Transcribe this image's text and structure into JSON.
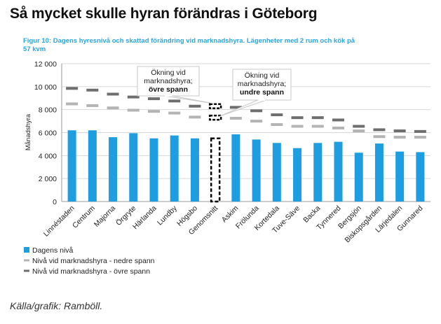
{
  "headline": "Så mycket skulle hyran förändras i Göteborg",
  "source": "Källa/grafik: Ramböll.",
  "colors": {
    "bar": "#1e9ee0",
    "lower": "#b4b4b4",
    "upper": "#6e6e6e",
    "caption": "#2aa6df",
    "dashed": "#000000"
  },
  "chart_data": {
    "type": "bar",
    "caption": "Figur 10: Dagens hyresnivå och skattad förändring vid marknadshyra. Lägenheter med 2 rum och kök på 57 kvm",
    "ylabel": "Månadshyra",
    "xlabel": "",
    "ylim": [
      0,
      12000
    ],
    "yticks": [
      0,
      2000,
      4000,
      6000,
      8000,
      10000,
      12000
    ],
    "ytick_labels": [
      "0",
      "2 000",
      "4 000",
      "6 000",
      "8 000",
      "10 000",
      "12 000"
    ],
    "grid": true,
    "legend_position": "bottom-left",
    "categories": [
      "Linnéstaden",
      "Centrum",
      "Majorna",
      "Örgryte",
      "Härlanda",
      "Lundby",
      "Högsbo",
      "Genomsnitt",
      "Askim",
      "Frölunda",
      "Kortedala",
      "Tuve-Säve",
      "Backa",
      "Tynnered",
      "Bergsjön",
      "Biskopsgården",
      "Lärjedalen",
      "Gunnared"
    ],
    "highlight_category": "Genomsnitt",
    "series": [
      {
        "name": "Dagens nivå",
        "type": "bar",
        "values": [
          6200,
          6200,
          5600,
          5950,
          5500,
          5750,
          5500,
          5500,
          5850,
          5400,
          5100,
          4650,
          5100,
          5200,
          4250,
          5050,
          4350,
          4300
        ]
      },
      {
        "name": "Nivå vid marknadshyra - nedre spann",
        "type": "marker",
        "values": [
          8500,
          8350,
          8150,
          7950,
          7850,
          7700,
          7350,
          7300,
          7250,
          7000,
          6700,
          6550,
          6550,
          6400,
          6150,
          5650,
          5600,
          5600
        ]
      },
      {
        "name": "Nivå vid marknadshyra - övre spann",
        "type": "marker",
        "values": [
          9850,
          9700,
          9350,
          9100,
          8950,
          8750,
          8300,
          8300,
          8200,
          7900,
          7550,
          7300,
          7300,
          7100,
          6550,
          6250,
          6150,
          6100
        ]
      }
    ],
    "annotations": [
      {
        "target": "övre spann",
        "lines": [
          "Ökning vid",
          "marknadshyra;"
        ],
        "bold": "övre spann"
      },
      {
        "target": "undre spann",
        "lines": [
          "Ökning vid",
          "marknadshyra;"
        ],
        "bold": "undre spann"
      }
    ]
  }
}
